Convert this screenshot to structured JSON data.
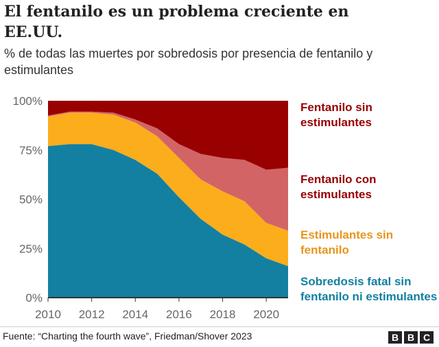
{
  "title": "El fentanilo es un problema creciente en EE.UU.",
  "subtitle": "% de todas las muertes por sobredosis por presencia de fentanilo y estimulantes",
  "footer": "Fuente: “Charting the fourth wave”, Friedman/Shover 2023",
  "logo": [
    "B",
    "B",
    "C"
  ],
  "chart_data": {
    "type": "area",
    "stacked": true,
    "x": [
      2010,
      2011,
      2012,
      2013,
      2014,
      2015,
      2016,
      2017,
      2018,
      2019,
      2020,
      2021
    ],
    "xticks": [
      "2010",
      "2012",
      "2014",
      "2016",
      "2018",
      "2020"
    ],
    "yticks": [
      "0%",
      "25%",
      "50%",
      "75%",
      "100%"
    ],
    "ylim": [
      0,
      100
    ],
    "legend": "right, labels beside areas",
    "series": [
      {
        "name": "Sobredosis fatal sin fentanilo ni estimulantes",
        "color": "#1380a1",
        "values": [
          77,
          78,
          78,
          75,
          70,
          63,
          51,
          40,
          32,
          27,
          20,
          16
        ]
      },
      {
        "name": "Estimulantes sin fentanilo",
        "color": "#fbad1b",
        "values": [
          15,
          16,
          16,
          18,
          19,
          19,
          20,
          20,
          22,
          22,
          18,
          18
        ]
      },
      {
        "name": "Fentanilo con estimulantes",
        "color": "#d26466",
        "values": [
          0.5,
          0.5,
          0.5,
          1,
          1.5,
          4,
          7,
          13,
          17,
          21,
          27,
          32
        ]
      },
      {
        "name": "Fentanilo sin estimulantes",
        "color": "#990000",
        "values": [
          7.5,
          5.5,
          5.5,
          6,
          9.5,
          14,
          22,
          27,
          29,
          30,
          35,
          34
        ]
      }
    ],
    "label_colors": [
      "#1380a1",
      "#e8951a",
      "#990000",
      "#990000"
    ]
  }
}
